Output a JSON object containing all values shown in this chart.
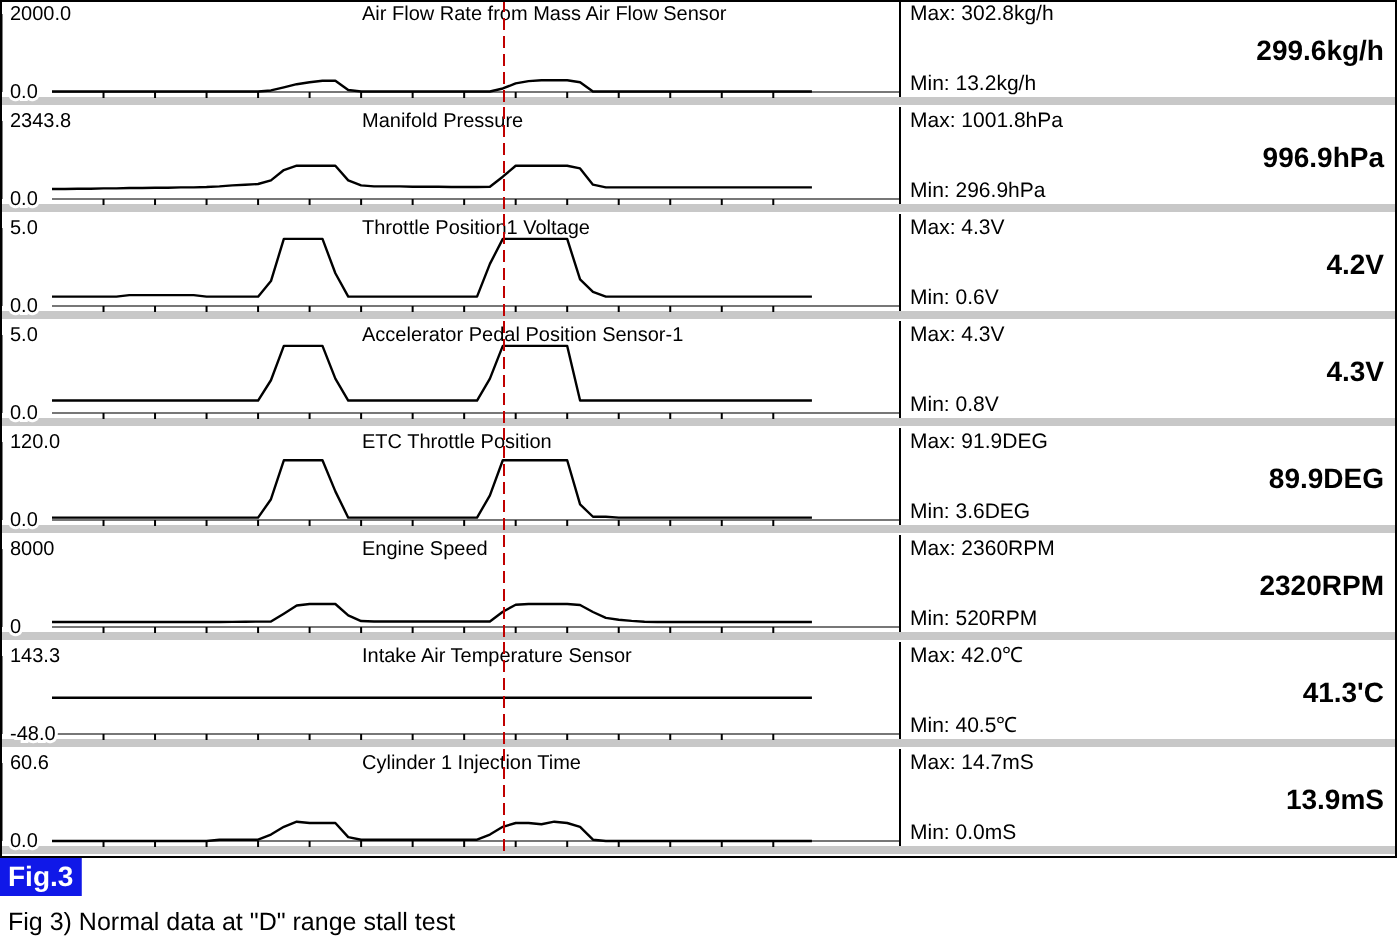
{
  "chart_data": [
    {
      "type": "line",
      "title": "Air Flow Rate from Mass Air Flow Sensor",
      "annotations": [
        "Max: 302.8kg/h",
        "299.6kg/h",
        "Min:  13.2kg/h"
      ],
      "categories": [
        null,
        null,
        null,
        null,
        null,
        null,
        null,
        null,
        null,
        null,
        null,
        null,
        null,
        null,
        null,
        null,
        null,
        null,
        null,
        null,
        null,
        null,
        null,
        null,
        null,
        null,
        null,
        null,
        null,
        null,
        null,
        null,
        null,
        null,
        null,
        null,
        null,
        null,
        null,
        null,
        null,
        null,
        null,
        null,
        null,
        null,
        null,
        null,
        null,
        null,
        null,
        null,
        null,
        null,
        null,
        null,
        null,
        null,
        null,
        null
      ],
      "series": [
        {
          "color": "#000000",
          "values": [
            13,
            13,
            13,
            13,
            13,
            13,
            13,
            13,
            13,
            13,
            13,
            13,
            13,
            13,
            13,
            13,
            13,
            40,
            120,
            200,
            250,
            290,
            290,
            50,
            13,
            13,
            13,
            13,
            13,
            13,
            13,
            13,
            13,
            13,
            13,
            90,
            220,
            280,
            300,
            300,
            300,
            250,
            13,
            13,
            13,
            13,
            13,
            13,
            13,
            13,
            13,
            13,
            13,
            13,
            13,
            13,
            13,
            13,
            13,
            13
          ]
        }
      ],
      "ylim": [
        0,
        2000
      ],
      "yticks": [
        {
          "value": 0,
          "label": "0.0"
        },
        {
          "value": 2000,
          "label": "2000.0"
        }
      ],
      "marker": "none",
      "grid": false,
      "legend": false
    },
    {
      "type": "line",
      "title": "Manifold Pressure",
      "annotations": [
        "Max: 1001.8hPa",
        "996.9hPa",
        "Min: 296.9hPa"
      ],
      "categories": [
        null,
        null,
        null,
        null,
        null,
        null,
        null,
        null,
        null,
        null,
        null,
        null,
        null,
        null,
        null,
        null,
        null,
        null,
        null,
        null,
        null,
        null,
        null,
        null,
        null,
        null,
        null,
        null,
        null,
        null,
        null,
        null,
        null,
        null,
        null,
        null,
        null,
        null,
        null,
        null,
        null,
        null,
        null,
        null,
        null,
        null,
        null,
        null,
        null,
        null,
        null,
        null,
        null,
        null,
        null,
        null,
        null,
        null,
        null,
        null
      ],
      "series": [
        {
          "color": "#000000",
          "values": [
            300,
            300,
            310,
            310,
            320,
            320,
            330,
            330,
            340,
            340,
            350,
            350,
            360,
            380,
            410,
            430,
            450,
            560,
            870,
            1000,
            1000,
            1000,
            1000,
            560,
            410,
            380,
            380,
            380,
            370,
            370,
            370,
            360,
            360,
            360,
            370,
            670,
            1000,
            1000,
            1000,
            1000,
            1000,
            920,
            430,
            350,
            350,
            350,
            350,
            350,
            350,
            350,
            350,
            350,
            350,
            350,
            350,
            350,
            350,
            350,
            350,
            350
          ]
        }
      ],
      "ylim": [
        0,
        2343.8
      ],
      "yticks": [
        {
          "value": 0,
          "label": "0.0"
        },
        {
          "value": 2343.8,
          "label": "2343.8"
        }
      ],
      "marker": "none",
      "grid": false,
      "legend": false
    },
    {
      "type": "line",
      "title": "Throttle Position1 Voltage",
      "annotations": [
        "Max:  4.3V",
        "4.2V",
        "Min:  0.6V"
      ],
      "categories": [
        null,
        null,
        null,
        null,
        null,
        null,
        null,
        null,
        null,
        null,
        null,
        null,
        null,
        null,
        null,
        null,
        null,
        null,
        null,
        null,
        null,
        null,
        null,
        null,
        null,
        null,
        null,
        null,
        null,
        null,
        null,
        null,
        null,
        null,
        null,
        null,
        null,
        null,
        null,
        null,
        null,
        null,
        null,
        null,
        null,
        null,
        null,
        null,
        null,
        null,
        null,
        null,
        null,
        null,
        null,
        null,
        null,
        null,
        null,
        null
      ],
      "series": [
        {
          "color": "#000000",
          "values": [
            0.6,
            0.6,
            0.6,
            0.6,
            0.6,
            0.6,
            0.7,
            0.7,
            0.7,
            0.7,
            0.7,
            0.7,
            0.6,
            0.6,
            0.6,
            0.6,
            0.6,
            1.6,
            4.3,
            4.3,
            4.3,
            4.3,
            2.1,
            0.6,
            0.6,
            0.6,
            0.6,
            0.6,
            0.6,
            0.6,
            0.6,
            0.6,
            0.6,
            0.6,
            2.7,
            4.3,
            4.3,
            4.3,
            4.3,
            4.3,
            4.3,
            1.7,
            0.9,
            0.6,
            0.6,
            0.6,
            0.6,
            0.6,
            0.6,
            0.6,
            0.6,
            0.6,
            0.6,
            0.6,
            0.6,
            0.6,
            0.6,
            0.6,
            0.6,
            0.6
          ]
        }
      ],
      "ylim": [
        0,
        5
      ],
      "yticks": [
        {
          "value": 0,
          "label": "0.0"
        },
        {
          "value": 5,
          "label": "5.0"
        }
      ],
      "marker": "none",
      "grid": false,
      "legend": false
    },
    {
      "type": "line",
      "title": "Accelerator Pedal Position Sensor-1",
      "annotations": [
        "Max:  4.3V",
        "4.3V",
        "Min:  0.8V"
      ],
      "categories": [
        null,
        null,
        null,
        null,
        null,
        null,
        null,
        null,
        null,
        null,
        null,
        null,
        null,
        null,
        null,
        null,
        null,
        null,
        null,
        null,
        null,
        null,
        null,
        null,
        null,
        null,
        null,
        null,
        null,
        null,
        null,
        null,
        null,
        null,
        null,
        null,
        null,
        null,
        null,
        null,
        null,
        null,
        null,
        null,
        null,
        null,
        null,
        null,
        null,
        null,
        null,
        null,
        null,
        null,
        null,
        null,
        null,
        null,
        null,
        null
      ],
      "series": [
        {
          "color": "#000000",
          "values": [
            0.8,
            0.8,
            0.8,
            0.8,
            0.8,
            0.8,
            0.8,
            0.8,
            0.8,
            0.8,
            0.8,
            0.8,
            0.8,
            0.8,
            0.8,
            0.8,
            0.8,
            2.1,
            4.3,
            4.3,
            4.3,
            4.3,
            2.2,
            0.8,
            0.8,
            0.8,
            0.8,
            0.8,
            0.8,
            0.8,
            0.8,
            0.8,
            0.8,
            0.8,
            2.2,
            4.3,
            4.3,
            4.3,
            4.3,
            4.3,
            4.3,
            0.8,
            0.8,
            0.8,
            0.8,
            0.8,
            0.8,
            0.8,
            0.8,
            0.8,
            0.8,
            0.8,
            0.8,
            0.8,
            0.8,
            0.8,
            0.8,
            0.8,
            0.8,
            0.8
          ]
        }
      ],
      "ylim": [
        0,
        5
      ],
      "yticks": [
        {
          "value": 0,
          "label": "0.0"
        },
        {
          "value": 5,
          "label": "5.0"
        }
      ],
      "marker": "none",
      "grid": false,
      "legend": false
    },
    {
      "type": "line",
      "title": "ETC Throttle Position",
      "annotations": [
        "Max: 91.9DEG",
        "89.9DEG",
        "Min:  3.6DEG"
      ],
      "categories": [
        null,
        null,
        null,
        null,
        null,
        null,
        null,
        null,
        null,
        null,
        null,
        null,
        null,
        null,
        null,
        null,
        null,
        null,
        null,
        null,
        null,
        null,
        null,
        null,
        null,
        null,
        null,
        null,
        null,
        null,
        null,
        null,
        null,
        null,
        null,
        null,
        null,
        null,
        null,
        null,
        null,
        null,
        null,
        null,
        null,
        null,
        null,
        null,
        null,
        null,
        null,
        null,
        null,
        null,
        null,
        null,
        null,
        null,
        null,
        null
      ],
      "series": [
        {
          "color": "#000000",
          "values": [
            3.6,
            3.6,
            3.6,
            3.6,
            3.6,
            3.6,
            3.6,
            3.6,
            3.6,
            3.6,
            3.6,
            3.6,
            3.6,
            3.6,
            3.6,
            3.6,
            3.6,
            32,
            91.9,
            91.9,
            91.9,
            91.9,
            44,
            3.6,
            3.6,
            3.6,
            3.6,
            3.6,
            3.6,
            3.6,
            3.6,
            3.6,
            3.6,
            3.6,
            38,
            91.9,
            91.9,
            91.9,
            91.9,
            91.9,
            91.9,
            24,
            5,
            5,
            3.6,
            3.6,
            3.6,
            3.6,
            3.6,
            3.6,
            3.6,
            3.6,
            3.6,
            3.6,
            3.6,
            3.6,
            3.6,
            3.6,
            3.6,
            3.6
          ]
        }
      ],
      "ylim": [
        0,
        120
      ],
      "yticks": [
        {
          "value": 0,
          "label": "0.0"
        },
        {
          "value": 120,
          "label": "120.0"
        }
      ],
      "marker": "none",
      "grid": false,
      "legend": false
    },
    {
      "type": "line",
      "title": "Engine Speed",
      "annotations": [
        "Max:  2360RPM",
        "2320RPM",
        "Min:   520RPM"
      ],
      "categories": [
        null,
        null,
        null,
        null,
        null,
        null,
        null,
        null,
        null,
        null,
        null,
        null,
        null,
        null,
        null,
        null,
        null,
        null,
        null,
        null,
        null,
        null,
        null,
        null,
        null,
        null,
        null,
        null,
        null,
        null,
        null,
        null,
        null,
        null,
        null,
        null,
        null,
        null,
        null,
        null,
        null,
        null,
        null,
        null,
        null,
        null,
        null,
        null,
        null,
        null,
        null,
        null,
        null,
        null,
        null,
        null,
        null,
        null,
        null,
        null
      ],
      "series": [
        {
          "color": "#000000",
          "values": [
            520,
            520,
            520,
            520,
            520,
            520,
            520,
            520,
            520,
            520,
            520,
            520,
            520,
            520,
            530,
            540,
            550,
            560,
            1360,
            2200,
            2360,
            2360,
            2360,
            1200,
            610,
            560,
            560,
            560,
            560,
            560,
            560,
            560,
            560,
            560,
            560,
            1570,
            2280,
            2360,
            2360,
            2360,
            2360,
            2250,
            1540,
            930,
            750,
            630,
            540,
            520,
            520,
            520,
            520,
            520,
            520,
            520,
            520,
            520,
            520,
            520,
            520,
            520
          ]
        }
      ],
      "ylim": [
        0,
        8000
      ],
      "yticks": [
        {
          "value": 0,
          "label": "0"
        },
        {
          "value": 8000,
          "label": "8000"
        }
      ],
      "marker": "none",
      "grid": false,
      "legend": false
    },
    {
      "type": "line",
      "title": "Intake Air Temperature Sensor",
      "annotations": [
        "Max: 42.0℃",
        "41.3'C",
        "Min: 40.5℃"
      ],
      "categories": [
        null,
        null,
        null,
        null,
        null,
        null,
        null,
        null,
        null,
        null,
        null,
        null,
        null,
        null,
        null,
        null,
        null,
        null,
        null,
        null,
        null,
        null,
        null,
        null,
        null,
        null,
        null,
        null,
        null,
        null,
        null,
        null,
        null,
        null,
        null,
        null,
        null,
        null,
        null,
        null,
        null,
        null,
        null,
        null,
        null,
        null,
        null,
        null,
        null,
        null,
        null,
        null,
        null,
        null,
        null,
        null,
        null,
        null,
        null,
        null
      ],
      "series": [
        {
          "color": "#000000",
          "values": [
            41,
            41,
            41,
            41,
            41,
            41,
            41,
            41,
            41,
            41,
            41,
            41,
            41,
            41,
            41,
            41,
            41,
            41,
            41,
            41,
            41,
            41,
            41,
            41,
            41,
            41,
            41,
            41,
            41,
            41,
            41,
            41,
            41,
            41,
            41,
            41,
            41,
            41,
            41,
            41,
            41,
            41,
            41,
            41,
            41,
            41,
            41,
            41,
            41,
            41,
            41,
            41,
            41,
            41,
            41,
            41,
            41,
            41,
            41,
            41
          ]
        }
      ],
      "ylim": [
        -48,
        143.3
      ],
      "yticks": [
        {
          "value": -48,
          "label": "-48.0"
        },
        {
          "value": 143.3,
          "label": "143.3"
        }
      ],
      "marker": "none",
      "grid": false,
      "legend": false
    },
    {
      "type": "line",
      "title": "Cylinder 1 Injection Time",
      "annotations": [
        "Max: 14.7mS",
        "13.9mS",
        "Min:  0.0mS"
      ],
      "categories": [
        null,
        null,
        null,
        null,
        null,
        null,
        null,
        null,
        null,
        null,
        null,
        null,
        null,
        null,
        null,
        null,
        null,
        null,
        null,
        null,
        null,
        null,
        null,
        null,
        null,
        null,
        null,
        null,
        null,
        null,
        null,
        null,
        null,
        null,
        null,
        null,
        null,
        null,
        null,
        null,
        null,
        null,
        null,
        null,
        null,
        null,
        null,
        null,
        null,
        null,
        null,
        null,
        null,
        null,
        null,
        null,
        null,
        null,
        null,
        null
      ],
      "series": [
        {
          "color": "#000000",
          "values": [
            0,
            0,
            0,
            0,
            0,
            0,
            0,
            0,
            0,
            0,
            0,
            0,
            0,
            1,
            1,
            1,
            1,
            5,
            11,
            15,
            14,
            14,
            14,
            3,
            1,
            1,
            1,
            1,
            1,
            1,
            1,
            1,
            1,
            1,
            5,
            11,
            14,
            14,
            13,
            15,
            14,
            11,
            1,
            0,
            0,
            0,
            0,
            0,
            0,
            0,
            0,
            0,
            0,
            0,
            0,
            0,
            0,
            0,
            0,
            0
          ]
        }
      ],
      "ylim": [
        0,
        60.6
      ],
      "yticks": [
        {
          "value": 0,
          "label": "0.0"
        },
        {
          "value": 60.6,
          "label": "60.6"
        }
      ],
      "marker": "none",
      "grid": false,
      "legend": false
    },
    {
      "type": "other",
      "title": "Fig.3",
      "subtitle": "Fig 3) Normal data at \"D\" range stall test"
    }
  ]
}
